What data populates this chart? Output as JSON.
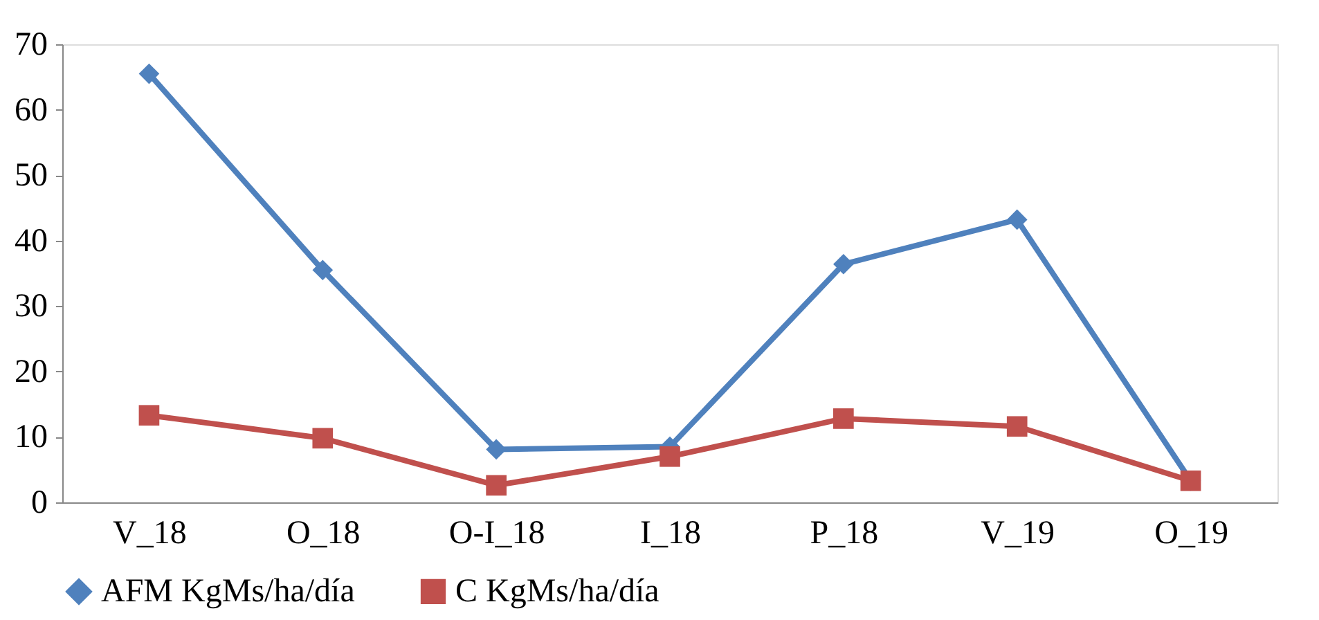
{
  "chart_data": {
    "type": "line",
    "categories": [
      "V_18",
      "O_18",
      "O-I_18",
      "I_18",
      "P_18",
      "V_19",
      "O_19"
    ],
    "series": [
      {
        "name": "AFM KgMs/ha/día",
        "color": "#4f81bd",
        "marker": "diamond",
        "values": [
          65.5,
          35.5,
          8.1,
          8.5,
          36.4,
          43.2,
          3.3
        ]
      },
      {
        "name": "C KgMs/ha/día",
        "color": "#c0504d",
        "marker": "square",
        "values": [
          13.3,
          9.8,
          2.6,
          7.0,
          12.8,
          11.6,
          3.3
        ]
      }
    ],
    "ylim": [
      0,
      70
    ],
    "yticks": [
      0,
      10,
      20,
      30,
      40,
      50,
      60,
      70
    ],
    "grid": false,
    "legend": "bottom",
    "line_style": "solid"
  }
}
